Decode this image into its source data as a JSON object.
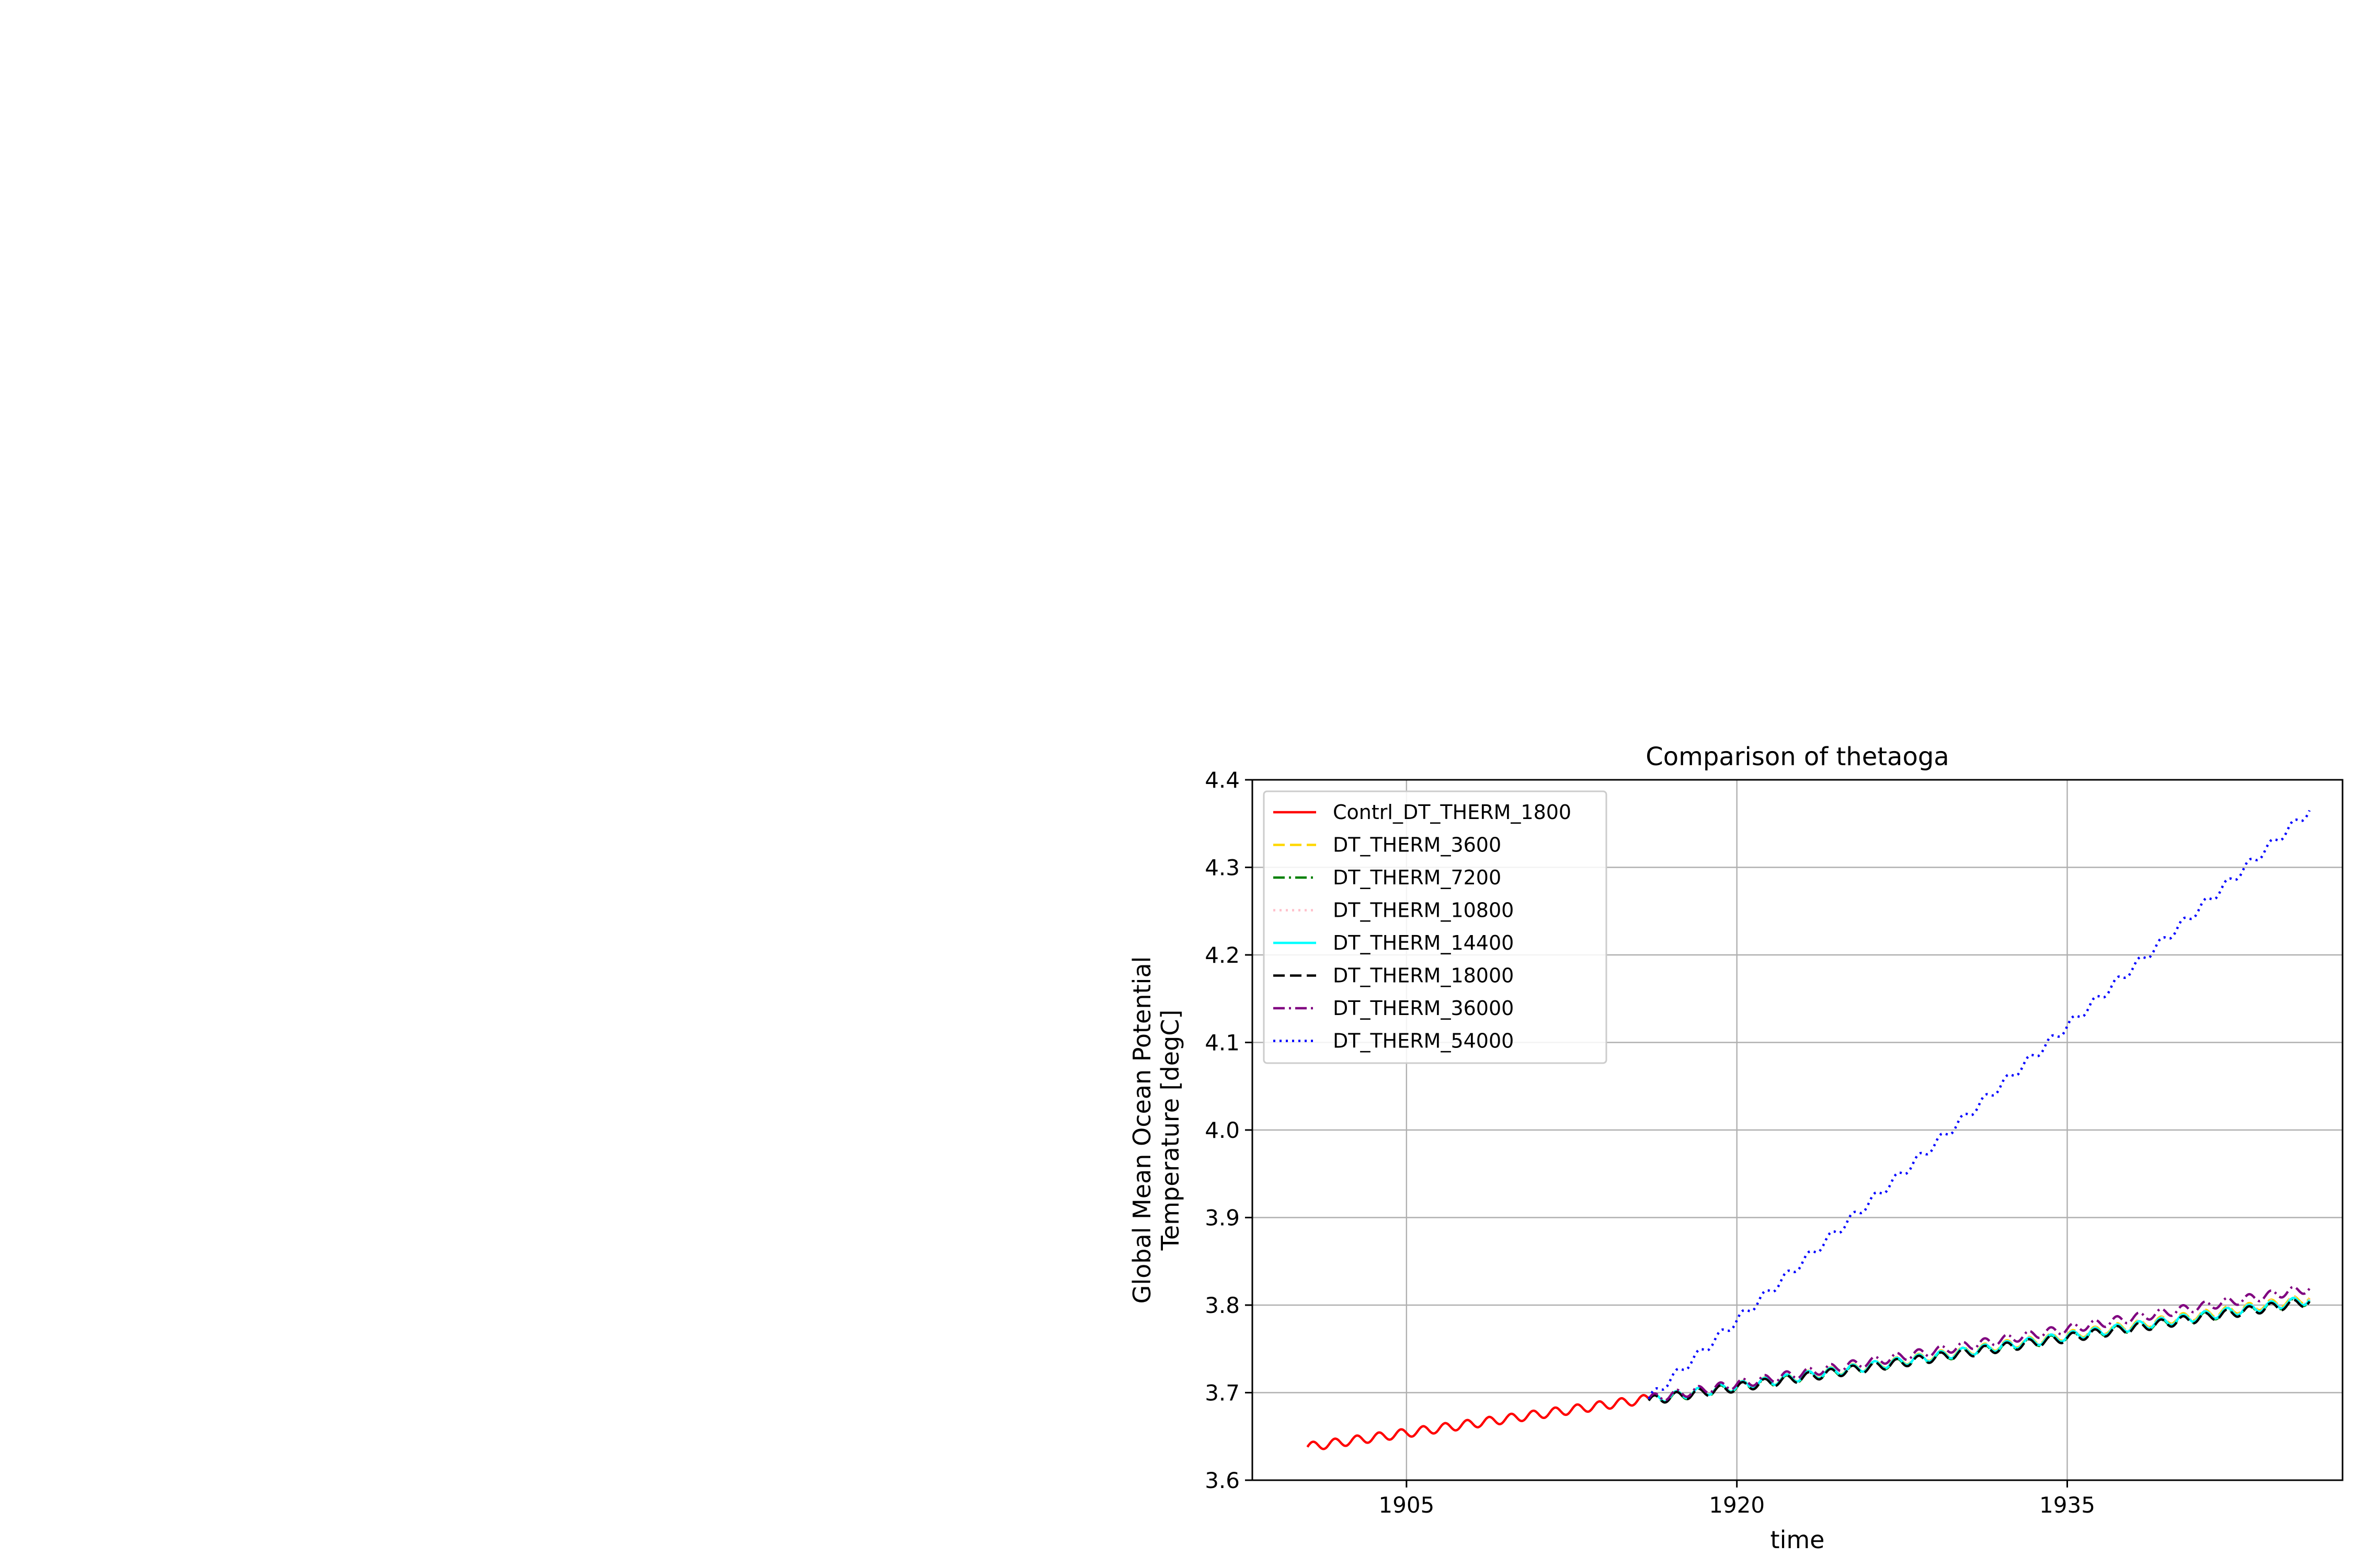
{
  "chart_data": {
    "type": "line",
    "title": "Comparison of thetaoga",
    "xlabel": "time",
    "ylabel_lines": [
      "Global Mean Ocean Potential",
      "Temperature [degC]"
    ],
    "xlim": [
      1898.0,
      1947.5
    ],
    "ylim": [
      3.6,
      4.4
    ],
    "xticks": [
      1905,
      1920,
      1935
    ],
    "yticks": [
      3.6,
      3.7,
      3.8,
      3.9,
      4.0,
      4.1,
      4.2,
      4.3,
      4.4
    ],
    "grid": true,
    "legend_position": "upper-left",
    "seasonal_amplitude": 0.005,
    "series": [
      {
        "name": "Contrl_DT_THERM_1800",
        "color": "#ff0000",
        "dash": "solid",
        "x_start": 1900.5,
        "x_end": 1916.0,
        "y_start": 3.638,
        "y_end": 3.693
      },
      {
        "name": "DT_THERM_3600",
        "color": "#ffd700",
        "dash": "dashed",
        "x_start": 1916.0,
        "x_end": 1946.0,
        "y_start": 3.692,
        "y_end": 3.808
      },
      {
        "name": "DT_THERM_7200",
        "color": "#008000",
        "dash": "dashdot",
        "x_start": 1916.0,
        "x_end": 1946.0,
        "y_start": 3.691,
        "y_end": 3.805
      },
      {
        "name": "DT_THERM_10800",
        "color": "#ffc0cb",
        "dash": "dotted",
        "x_start": 1916.0,
        "x_end": 1946.0,
        "y_start": 3.692,
        "y_end": 3.807
      },
      {
        "name": "DT_THERM_14400",
        "color": "#00ffff",
        "dash": "solid",
        "x_start": 1916.0,
        "x_end": 1946.0,
        "y_start": 3.692,
        "y_end": 3.806
      },
      {
        "name": "DT_THERM_18000",
        "color": "#000000",
        "dash": "dashed",
        "x_start": 1916.0,
        "x_end": 1946.0,
        "y_start": 3.691,
        "y_end": 3.804
      },
      {
        "name": "DT_THERM_36000",
        "color": "#800080",
        "dash": "dashdot",
        "x_start": 1916.0,
        "x_end": 1946.0,
        "y_start": 3.693,
        "y_end": 3.819
      },
      {
        "name": "DT_THERM_54000",
        "color": "#0000ff",
        "dash": "dotted",
        "x_start": 1916.0,
        "x_end": 1946.0,
        "y_start": 3.693,
        "y_end": 4.365
      }
    ]
  }
}
